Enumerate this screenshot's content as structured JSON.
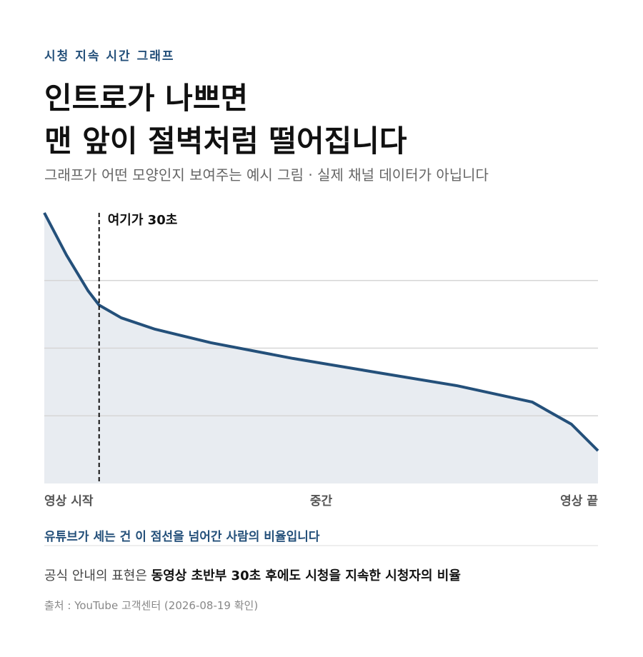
{
  "chart_data": {
    "type": "area-line",
    "kicker": "시청 지속 시간 그래프",
    "title": [
      "인트로가 나쁘면",
      "맨 앞이 절벽처럼 떨어집니다"
    ],
    "subtitle": "그래프가 어떤 모양인지 보여주는 예시 그림 · 실제 채널 데이터가 아닙니다",
    "x": [
      0,
      4.0,
      7.9,
      9.9,
      13.9,
      20.0,
      30.1,
      44.9,
      60.4,
      74.6,
      88.1,
      95.2,
      100
    ],
    "values": [
      100,
      84.4,
      71.2,
      65.9,
      61.2,
      57.0,
      52.0,
      46.2,
      40.9,
      36.1,
      30.1,
      21.9,
      12.1
    ],
    "color": "#24507a",
    "fill": "#e8ecf1",
    "xlim": [
      0,
      100
    ],
    "ylim": [
      0,
      100
    ],
    "xticks": [
      {
        "value": 0,
        "label": "영상 시작"
      },
      {
        "value": 50,
        "label": "중간"
      },
      {
        "value": 100,
        "label": "영상 끝"
      }
    ],
    "ygrid": [
      25,
      50,
      75
    ],
    "marker": {
      "x": 9.9,
      "label": "여기가 30초"
    },
    "note": "유튜브가 세는 건 이 점선을 넘어간 사람의 비율입니다",
    "definition": {
      "lead": "공식 안내의 표현은 ",
      "emphasis": "동영상 초반부 30초 후에도 시청을 지속한 시청자의 비율"
    },
    "source": "출처 : YouTube 고객센터 (2026-08-19 확인)"
  }
}
